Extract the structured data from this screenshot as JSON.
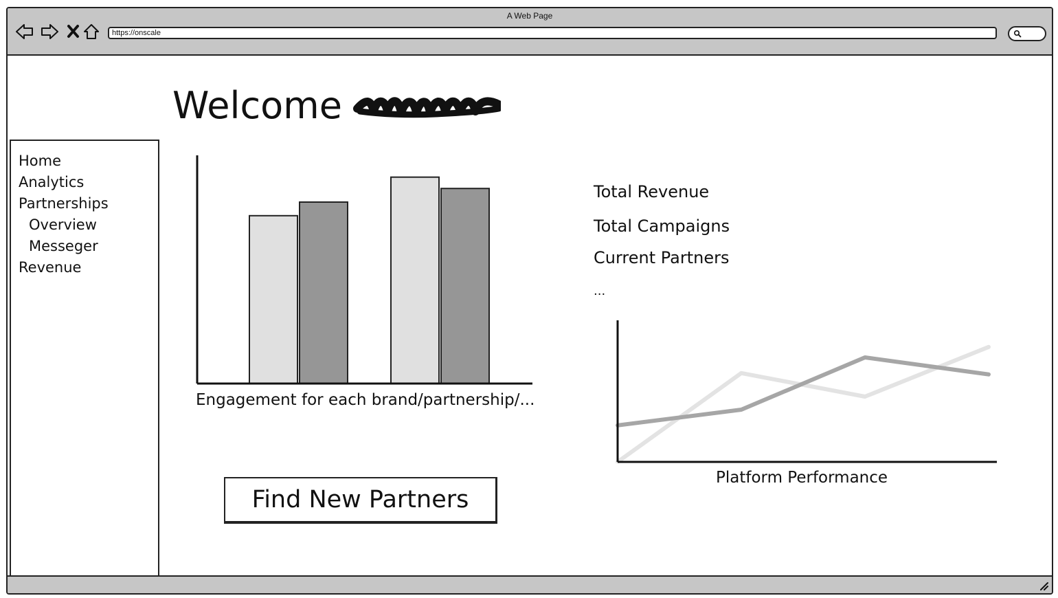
{
  "window": {
    "title": "A Web Page",
    "url": "https://onscale"
  },
  "page": {
    "welcome_text": "Welcome"
  },
  "sidebar": {
    "items": [
      {
        "label": "Home",
        "level": 0
      },
      {
        "label": "Analytics",
        "level": 0
      },
      {
        "label": "Partnerships",
        "level": 0
      },
      {
        "label": "Overview",
        "level": 1
      },
      {
        "label": "Messeger",
        "level": 1
      },
      {
        "label": "Revenue",
        "level": 0
      }
    ]
  },
  "stats": {
    "total_revenue": "Total Revenue",
    "total_campaigns": "Total Campaigns",
    "current_partners": "Current Partners",
    "more": "..."
  },
  "actions": {
    "find_partners": "Find New Partners"
  },
  "chart_data": [
    {
      "type": "bar",
      "title": "Engagement for each brand/partnership/...",
      "xlabel": "",
      "ylabel": "",
      "categories": [
        "",
        ""
      ],
      "series": [
        {
          "color": "#e0e0e0",
          "values": [
            74,
            91
          ]
        },
        {
          "color": "#969696",
          "values": [
            80,
            86
          ]
        }
      ],
      "ylim": [
        0,
        100
      ],
      "grid": false
    },
    {
      "type": "line",
      "title": "Platform Performance",
      "xlabel": "",
      "ylabel": "",
      "x": [
        0,
        1,
        2,
        3
      ],
      "series": [
        {
          "color": "#e3e3e3",
          "values": [
            0,
            68,
            50,
            88
          ]
        },
        {
          "color": "#a6a6a6",
          "values": [
            28,
            40,
            80,
            67
          ]
        }
      ],
      "ylim": [
        0,
        100
      ],
      "grid": false
    }
  ]
}
